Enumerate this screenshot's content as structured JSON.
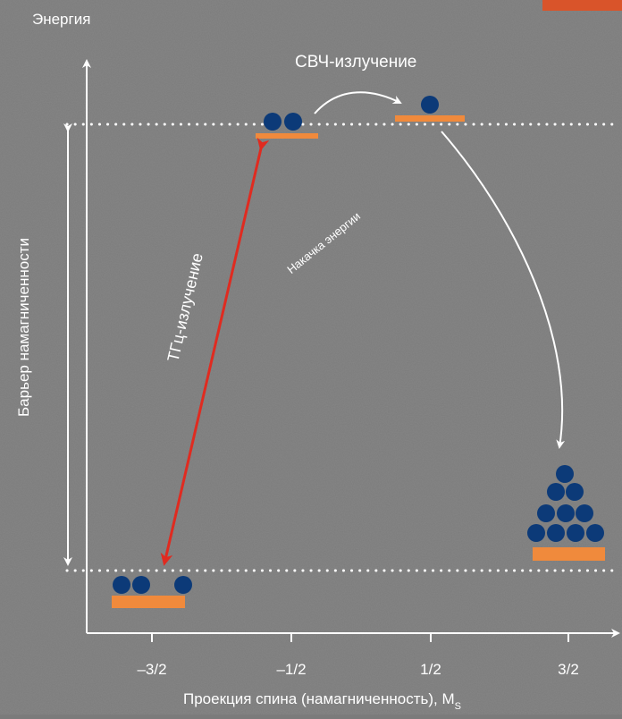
{
  "energy_label": "Энергия",
  "barrier_label": "Барьер намагниченности",
  "xaxis_label": "Проекция спина (намагниченность), M",
  "xaxis_label_sub": "S",
  "microwave_label": "СВЧ-излучение",
  "thz_label": "ТГц-излучение",
  "pump_label": "Накачка энергии",
  "ticks": [
    "–3/2",
    "–1/2",
    "1/2",
    "3/2"
  ],
  "levels": [
    {
      "ms": "-3/2",
      "electrons": 3
    },
    {
      "ms": "-1/2",
      "electrons": 2
    },
    {
      "ms": "1/2",
      "electrons": 1
    },
    {
      "ms": "3/2",
      "electrons": 10
    }
  ],
  "colors": {
    "background": "#7b7b7b",
    "level_bar": "#f08a3c",
    "electron": "#0c3a78",
    "thz_arrow": "#e02b20",
    "axes": "#ffffff",
    "corner_patch": "#d9542a"
  }
}
